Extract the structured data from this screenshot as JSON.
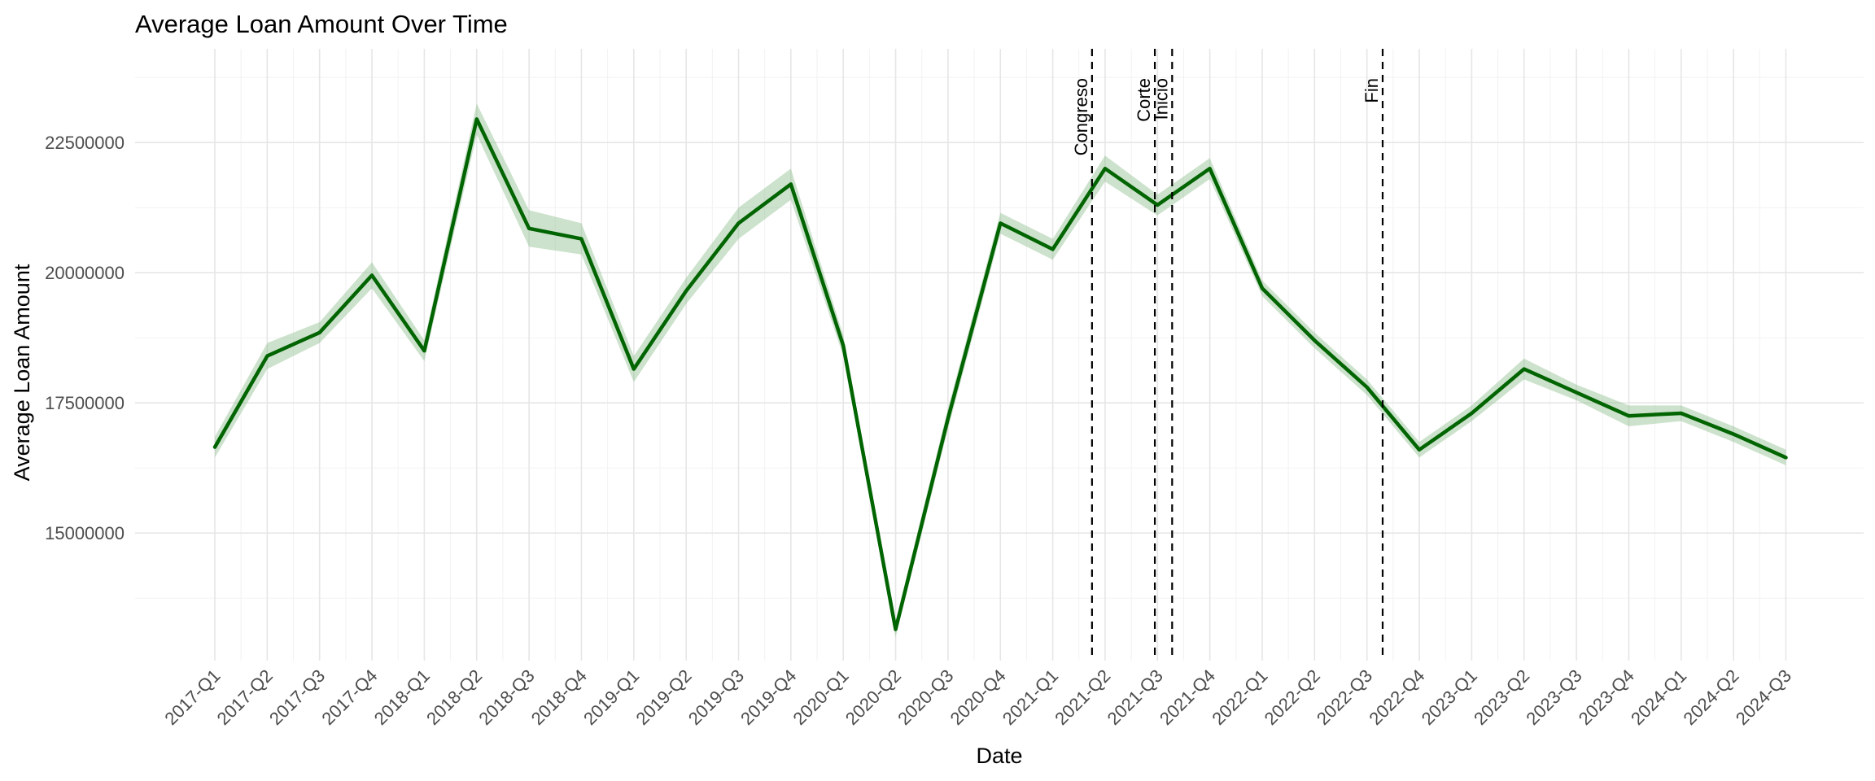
{
  "chart_data": {
    "type": "line",
    "title": "Average Loan Amount Over Time",
    "xlabel": "Date",
    "ylabel": "Average Loan Amount",
    "categories": [
      "2017-Q1",
      "2017-Q2",
      "2017-Q3",
      "2017-Q4",
      "2018-Q1",
      "2018-Q2",
      "2018-Q3",
      "2018-Q4",
      "2019-Q1",
      "2019-Q2",
      "2019-Q3",
      "2019-Q4",
      "2020-Q1",
      "2020-Q2",
      "2020-Q3",
      "2020-Q4",
      "2021-Q1",
      "2021-Q2",
      "2021-Q3",
      "2021-Q4",
      "2022-Q1",
      "2022-Q2",
      "2022-Q3",
      "2022-Q4",
      "2023-Q1",
      "2023-Q2",
      "2023-Q3",
      "2023-Q4",
      "2024-Q1",
      "2024-Q2",
      "2024-Q3"
    ],
    "series": [
      {
        "values": [
          16650000,
          18400000,
          18850000,
          19950000,
          18500000,
          22950000,
          20850000,
          20650000,
          18150000,
          19650000,
          20950000,
          21700000,
          18600000,
          13150000,
          17200000,
          20950000,
          20450000,
          22000000,
          21300000,
          22000000,
          19700000,
          18700000,
          17800000,
          16600000,
          17300000,
          18150000,
          17700000,
          17250000,
          17300000,
          16900000,
          16450000
        ],
        "ci_low": [
          16450000,
          18150000,
          18650000,
          19700000,
          18300000,
          22650000,
          20500000,
          20350000,
          17900000,
          19400000,
          20650000,
          21400000,
          18400000,
          13000000,
          17000000,
          20750000,
          20250000,
          21750000,
          21100000,
          21800000,
          19550000,
          18550000,
          17650000,
          16450000,
          17150000,
          17950000,
          17550000,
          17050000,
          17150000,
          16750000,
          16300000
        ],
        "ci_high": [
          16850000,
          18650000,
          19050000,
          20200000,
          18700000,
          23250000,
          21200000,
          20950000,
          18400000,
          19900000,
          21250000,
          22000000,
          18800000,
          13300000,
          17400000,
          21150000,
          20650000,
          22250000,
          21500000,
          22200000,
          19850000,
          18850000,
          17950000,
          16750000,
          17450000,
          18350000,
          17850000,
          17450000,
          17450000,
          17050000,
          16600000
        ],
        "color": "#006400",
        "band_color": "#8fbf8f"
      }
    ],
    "y_ticks": [
      15000000,
      17500000,
      20000000,
      22500000
    ],
    "y_tick_labels": [
      "15000000",
      "17500000",
      "20000000",
      "22500000"
    ],
    "ylim": [
      12550000,
      24300000
    ],
    "vlines": [
      {
        "label": "Congreso",
        "x_index": 16.75
      },
      {
        "label": "Corte",
        "x_index": 17.95
      },
      {
        "label": "Inicio",
        "x_index": 18.28
      },
      {
        "label": "Fin",
        "x_index": 22.3
      }
    ],
    "grid": true,
    "theme": "minimal"
  }
}
